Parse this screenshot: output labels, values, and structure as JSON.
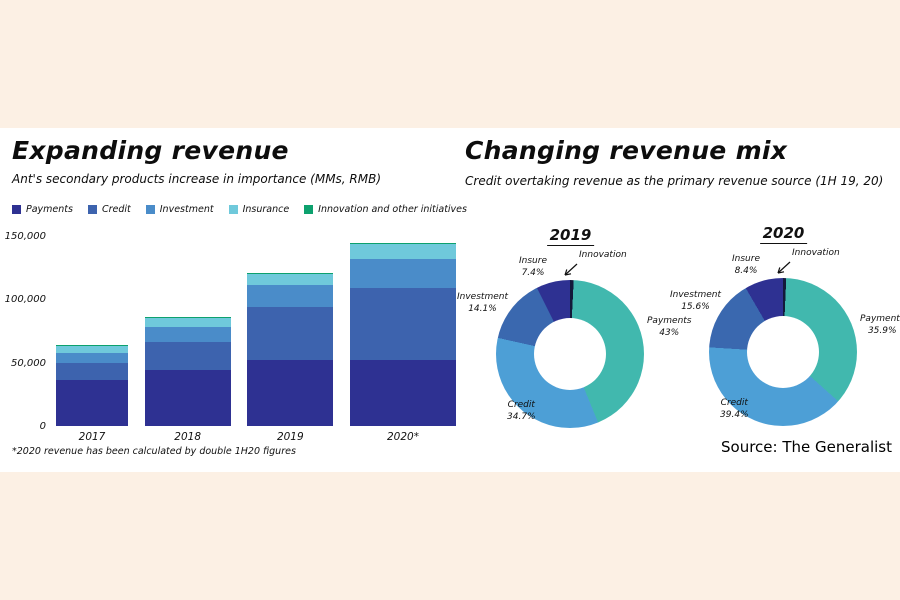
{
  "page": {
    "background": "#fcf0e4",
    "panel_background": "#ffffff"
  },
  "left": {
    "title": "Expanding revenue",
    "subtitle": "Ant's secondary products increase in importance (MMs, RMB)",
    "footnote": "*2020 revenue has been calculated by double 1H20 figures"
  },
  "right": {
    "title": "Changing revenue mix",
    "subtitle": "Credit overtaking revenue as the primary revenue source (1H 19, 20)",
    "source": "Source: The Generalist"
  },
  "chart_data": [
    {
      "type": "bar",
      "stacked": true,
      "title": "Expanding revenue",
      "subtitle": "Ant's secondary products increase in importance (MMs, RMB)",
      "categories": [
        "2017",
        "2018",
        "2019",
        "2020*"
      ],
      "series": [
        {
          "name": "Payments",
          "color": "#2e3192",
          "values": [
            36000,
            44000,
            52000,
            52000
          ]
        },
        {
          "name": "Credit",
          "color": "#3d63ae",
          "values": [
            14000,
            22000,
            42000,
            57000
          ]
        },
        {
          "name": "Investment",
          "color": "#4a8cc9",
          "values": [
            8000,
            12000,
            17000,
            23000
          ]
        },
        {
          "name": "Insurance",
          "color": "#6fc9db",
          "values": [
            5000,
            7000,
            9000,
            12000
          ]
        },
        {
          "name": "Innovation and other initiatives",
          "color": "#0da16e",
          "values": [
            1000,
            800,
            900,
            700
          ]
        }
      ],
      "ylim": [
        0,
        150000
      ],
      "y_ticks": [
        0,
        50000,
        100000,
        150000
      ],
      "legend_position": "top",
      "grid": false
    },
    {
      "type": "pie",
      "title": "2019",
      "donut": true,
      "slices": [
        {
          "name": "Innovation",
          "color": "#131a3a",
          "pct": 0.8,
          "label": ""
        },
        {
          "name": "Payments",
          "color": "#41b8ae",
          "pct": 43.0,
          "label": "43%"
        },
        {
          "name": "Credit",
          "color": "#4d9fd6",
          "pct": 34.7,
          "label": "34.7%"
        },
        {
          "name": "Investment",
          "color": "#3a68af",
          "pct": 14.1,
          "label": "14.1%"
        },
        {
          "name": "Insure",
          "color": "#2e3192",
          "pct": 7.4,
          "label": "7.4%"
        }
      ]
    },
    {
      "type": "pie",
      "title": "2020",
      "donut": true,
      "slices": [
        {
          "name": "Innovation",
          "color": "#131a3a",
          "pct": 0.7,
          "label": ""
        },
        {
          "name": "Payments",
          "color": "#41b8ae",
          "pct": 35.9,
          "label": "35.9%"
        },
        {
          "name": "Credit",
          "color": "#4d9fd6",
          "pct": 39.4,
          "label": "39.4%"
        },
        {
          "name": "Investment",
          "color": "#3a68af",
          "pct": 15.6,
          "label": "15.6%"
        },
        {
          "name": "Insure",
          "color": "#2e3192",
          "pct": 8.4,
          "label": "8.4%"
        }
      ]
    }
  ]
}
